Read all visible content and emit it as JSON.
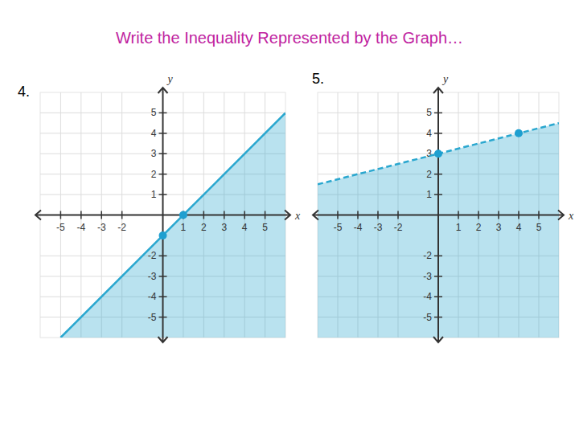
{
  "title": "Write the Inequality Represented by the Graph…",
  "chart_data": [
    {
      "type": "line",
      "title": "4.",
      "xlabel": "x",
      "ylabel": "y",
      "xlim": [
        -6,
        6
      ],
      "ylim": [
        -6,
        6
      ],
      "xticks": [
        -5,
        -4,
        -3,
        -2,
        1,
        2,
        3,
        4,
        5
      ],
      "yticks": [
        -5,
        -4,
        -3,
        -2,
        1,
        2,
        3,
        4,
        5
      ],
      "grid": true,
      "series": [
        {
          "type": "area",
          "color": "#2aa7cf",
          "line_style": "solid",
          "x": [
            -5,
            6
          ],
          "values": [
            -6,
            5
          ]
        },
        {
          "type": "scatter",
          "color": "#1e9fd0",
          "marker": "circle",
          "x": [
            0,
            1
          ],
          "values": [
            -1,
            0
          ]
        }
      ]
    },
    {
      "type": "line",
      "title": "5.",
      "xlabel": "x",
      "ylabel": "y",
      "xlim": [
        -6,
        6
      ],
      "ylim": [
        -6,
        6
      ],
      "xticks": [
        -5,
        -4,
        -3,
        -2,
        1,
        2,
        3,
        4,
        5
      ],
      "yticks": [
        -5,
        -4,
        -3,
        -2,
        1,
        2,
        3,
        4,
        5
      ],
      "grid": true,
      "series": [
        {
          "type": "area",
          "color": "#2aa7cf",
          "line_style": "dashed",
          "x": [
            -6,
            6
          ],
          "values": [
            1.5,
            4.5
          ]
        },
        {
          "type": "scatter",
          "color": "#1e9fd0",
          "marker": "circle",
          "x": [
            0,
            4
          ],
          "values": [
            3,
            4
          ]
        }
      ]
    }
  ]
}
